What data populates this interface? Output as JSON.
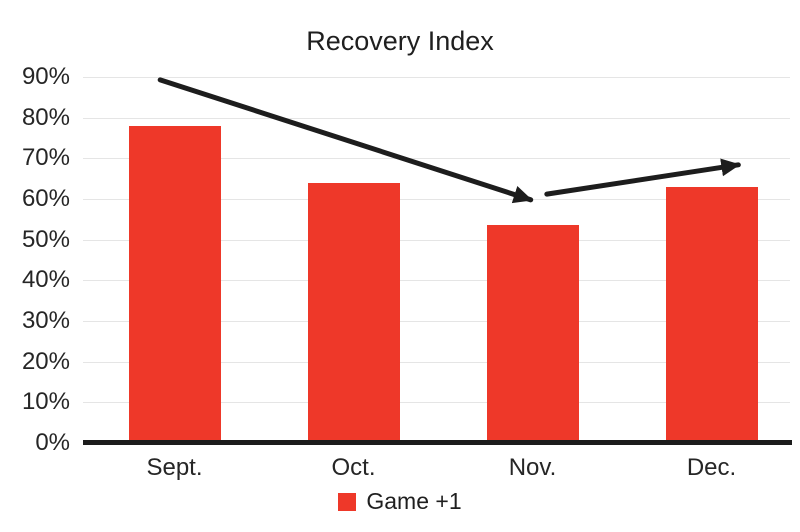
{
  "chart_data": {
    "type": "bar",
    "title": "Recovery Index",
    "categories": [
      "Sept.",
      "Oct.",
      "Nov.",
      "Dec."
    ],
    "series": [
      {
        "name": "Game +1",
        "values": [
          78,
          64,
          53.5,
          63
        ]
      }
    ],
    "xlabel": "",
    "ylabel": "",
    "ylim": [
      0,
      90
    ],
    "ytick_labels": [
      "0%",
      "10%",
      "20%",
      "30%",
      "40%",
      "50%",
      "60%",
      "70%",
      "80%",
      "90%"
    ],
    "grid": true,
    "legend_position": "bottom",
    "bar_color": "#ee3829",
    "annotation_color": "#1d1d1d",
    "annotations": [
      {
        "type": "arrow",
        "from": {
          "cat": -0.08,
          "pct": 89.3
        },
        "to": {
          "cat": 1.99,
          "pct": 59.8
        }
      },
      {
        "type": "arrow",
        "from": {
          "cat": 2.08,
          "pct": 61.2
        },
        "to": {
          "cat": 3.15,
          "pct": 68.4
        }
      }
    ]
  }
}
